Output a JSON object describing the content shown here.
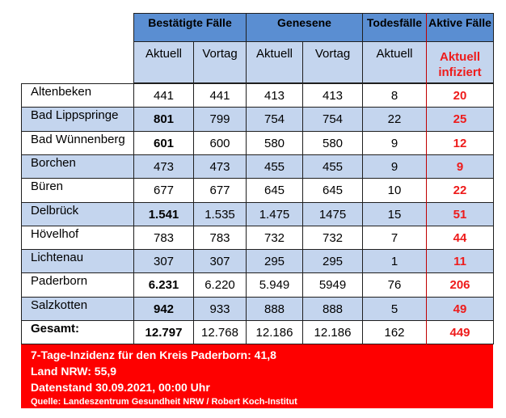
{
  "headers": {
    "bestaetigte": "Bestätigte Fälle",
    "genesene": "Genesene",
    "todesfaelle": "Todesfälle",
    "aktive": "Aktive Fälle"
  },
  "subheaders": {
    "aktuell1": "Aktuell",
    "vortag1": "Vortag",
    "aktuell2": "Aktuell",
    "vortag2": "Vortag",
    "aktuell3": "Aktuell",
    "aktuell_infiziert_line1": "Aktuell",
    "aktuell_infiziert_line2": "infiziert"
  },
  "rows": [
    {
      "name": "Altenbeken",
      "best_akt": "441",
      "best_vor": "441",
      "gen_akt": "413",
      "gen_vor": "413",
      "tod": "8",
      "aktiv": "20",
      "bold": false
    },
    {
      "name": "Bad Lippspringe",
      "best_akt": "801",
      "best_vor": "799",
      "gen_akt": "754",
      "gen_vor": "754",
      "tod": "22",
      "aktiv": "25",
      "bold": true
    },
    {
      "name": "Bad Wünnenberg",
      "best_akt": "601",
      "best_vor": "600",
      "gen_akt": "580",
      "gen_vor": "580",
      "tod": "9",
      "aktiv": "12",
      "bold": true
    },
    {
      "name": "Borchen",
      "best_akt": "473",
      "best_vor": "473",
      "gen_akt": "455",
      "gen_vor": "455",
      "tod": "9",
      "aktiv": "9",
      "bold": false
    },
    {
      "name": "Büren",
      "best_akt": "677",
      "best_vor": "677",
      "gen_akt": "645",
      "gen_vor": "645",
      "tod": "10",
      "aktiv": "22",
      "bold": false
    },
    {
      "name": "Delbrück",
      "best_akt": "1.541",
      "best_vor": "1.535",
      "gen_akt": "1.475",
      "gen_vor": "1475",
      "tod": "15",
      "aktiv": "51",
      "bold": true
    },
    {
      "name": "Hövelhof",
      "best_akt": "783",
      "best_vor": "783",
      "gen_akt": "732",
      "gen_vor": "732",
      "tod": "7",
      "aktiv": "44",
      "bold": false
    },
    {
      "name": "Lichtenau",
      "best_akt": "307",
      "best_vor": "307",
      "gen_akt": "295",
      "gen_vor": "295",
      "tod": "1",
      "aktiv": "11",
      "bold": false
    },
    {
      "name": "Paderborn",
      "best_akt": "6.231",
      "best_vor": "6.220",
      "gen_akt": "5.949",
      "gen_vor": "5949",
      "tod": "76",
      "aktiv": "206",
      "bold": true
    },
    {
      "name": "Salzkotten",
      "best_akt": "942",
      "best_vor": "933",
      "gen_akt": "888",
      "gen_vor": "888",
      "tod": "5",
      "aktiv": "49",
      "bold": true
    },
    {
      "name": "Gesamt:",
      "best_akt": "12.797",
      "best_vor": "12.768",
      "gen_akt": "12.186",
      "gen_vor": "12.186",
      "tod": "162",
      "aktiv": "449",
      "bold": true,
      "total": true
    }
  ],
  "footer": {
    "line1": "7-Tage-Inzidenz für den Kreis Paderborn: 41,8",
    "line2": "Land NRW: 55,9",
    "line3": "Datenstand 30.09.2021, 00:00 Uhr",
    "source": "Quelle: Landeszentrum Gesundheit NRW / Robert Koch-Institut"
  },
  "colors": {
    "header_blue": "#5a8ed2",
    "light_blue": "#c4d5ee",
    "accent_red": "#ee1b1b",
    "footer_red": "#fe0000"
  }
}
